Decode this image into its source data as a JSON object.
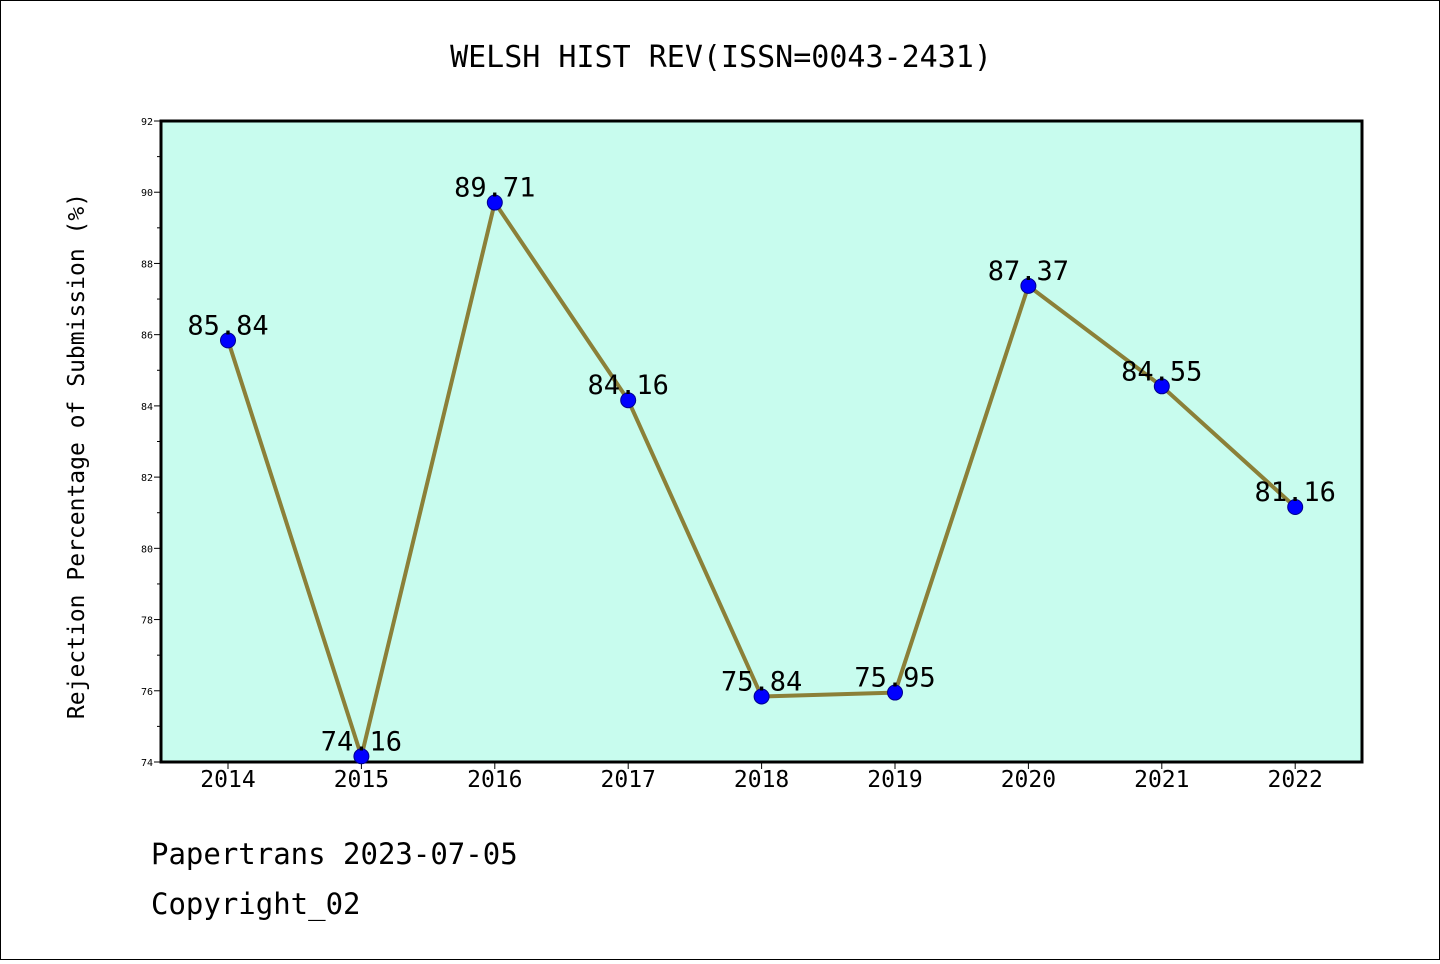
{
  "chart_data": {
    "type": "line",
    "title": "WELSH HIST REV(ISSN=0043-2431)",
    "xlabel": "",
    "ylabel": "Rejection Percentage of Submission (%)",
    "categories": [
      "2014",
      "2015",
      "2016",
      "2017",
      "2018",
      "2019",
      "2020",
      "2021",
      "2022"
    ],
    "values": [
      85.84,
      74.16,
      89.71,
      84.16,
      75.84,
      75.95,
      87.37,
      84.55,
      81.16
    ],
    "data_labels": [
      "85.84",
      "74.16",
      "89.71",
      "84.16",
      "75.84",
      "75.95",
      "87.37",
      "84.55",
      "81.16"
    ],
    "ylim": [
      74,
      92
    ],
    "yticks": [
      "74",
      "76",
      "78",
      "80",
      "82",
      "84",
      "86",
      "88",
      "90",
      "92"
    ],
    "grid": false,
    "colors": {
      "plot_background": "#c8fcee",
      "line": "#8b8038",
      "marker": "#0000ff"
    }
  },
  "footer": {
    "line1": "Papertrans 2023-07-05",
    "line2": "Copyright_02"
  }
}
